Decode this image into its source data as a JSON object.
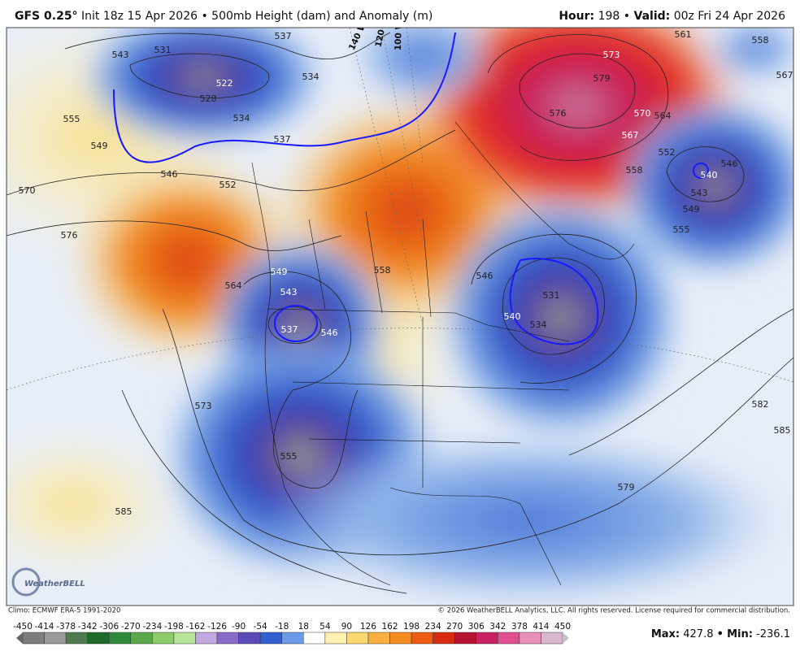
{
  "header": {
    "model": "GFS 0.25°",
    "description": "Init 18z 15 Apr 2026 • 500mb Height (dam) and Anomaly (m)",
    "hour_label": "Hour:",
    "hour_value": "198",
    "separator": "•",
    "valid_label": "Valid:",
    "valid_value": "00z Fri 24 Apr 2026"
  },
  "map": {
    "contour_labels": [
      "543",
      "531",
      "537",
      "534",
      "528",
      "522",
      "534",
      "537",
      "549",
      "555",
      "546",
      "552",
      "570",
      "576",
      "564",
      "558",
      "549",
      "543",
      "537",
      "546",
      "573",
      "585",
      "555",
      "561",
      "573",
      "579",
      "576",
      "570",
      "567",
      "564",
      "558",
      "552",
      "546",
      "540",
      "543",
      "549",
      "555",
      "546",
      "531",
      "540",
      "534",
      "579",
      "582",
      "585",
      "567",
      "558"
    ],
    "longitude_labels": [
      "140 W",
      "120 W",
      "100 W"
    ],
    "logo": "WeatherBELL"
  },
  "footer": {
    "climo": "Climo: ECMWF ERA-5 1991-2020",
    "copyright": "© 2026 WeatherBELL Analytics, LLC. All rights reserved. License required for commercial distribution."
  },
  "colorbar": {
    "ticks": [
      -450,
      -414,
      -378,
      -342,
      -306,
      -270,
      -234,
      -198,
      -162,
      -126,
      -90,
      -54,
      -18,
      18,
      54,
      90,
      126,
      162,
      198,
      234,
      270,
      306,
      342,
      378,
      414,
      450
    ]
  },
  "stats": {
    "max_label": "Max:",
    "max_value": "427.8",
    "separator": "•",
    "min_label": "Min:",
    "min_value": "-236.1"
  }
}
